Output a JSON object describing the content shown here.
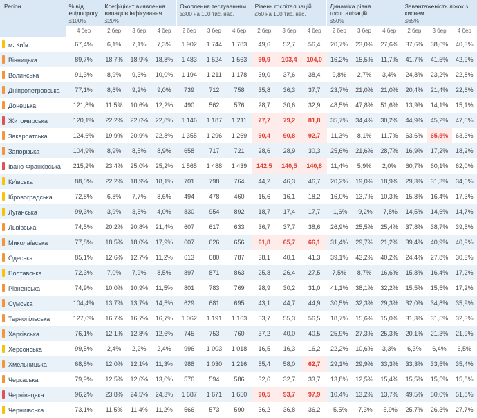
{
  "chart_data": {
    "type": "table",
    "column_groups": [
      {
        "title": "Регіон",
        "threshold": "",
        "dates": []
      },
      {
        "title": "% від епідпорогу",
        "threshold": "≤100%",
        "dates": [
          "4 бер"
        ]
      },
      {
        "title": "Коефіцієнт виявлення випадків інфікування",
        "threshold": "≤20%",
        "dates": [
          "2 бер",
          "3 бер",
          "4 бер"
        ]
      },
      {
        "title": "Охоплення тестуванням",
        "threshold": "≥300 на 100 тис. нас.",
        "dates": [
          "2 бер",
          "3 бер",
          "4 бер"
        ]
      },
      {
        "title": "Рівень госпіталізацій",
        "threshold": "≤60 на 100 тис. нас.",
        "dates": [
          "2 бер",
          "3 бер",
          "4 бер"
        ]
      },
      {
        "title": "Динаміка рівня госпіталізацій",
        "threshold": "≤50%",
        "dates": [
          "2 бер",
          "3 бер",
          "4 бер"
        ]
      },
      {
        "title": "Завантаженість ліжок з киснем",
        "threshold": "≤65%",
        "dates": [
          "2 бер",
          "3 бер",
          "4 бер"
        ]
      }
    ],
    "colors": {
      "header_bg": "#d9e8f4",
      "stripe_bg": "#e9f1f9",
      "alert_text": "#e03c31",
      "alert_bg": "#fdecea"
    },
    "indicator_colors": {
      "yellow": "#f6c20e",
      "orange": "#f5953b",
      "red": "#e05252"
    },
    "rows": [
      {
        "region": "м. Київ",
        "indicator": "yellow",
        "values": [
          [
            "67,4%"
          ],
          [
            "6,1%",
            "7,1%",
            "7,3%"
          ],
          [
            "1 902",
            "1 744",
            "1 783"
          ],
          [
            "49,6",
            "52,7",
            "56,4"
          ],
          [
            "20,7%",
            "23,0%",
            "27,6%"
          ],
          [
            "37,6%",
            "38,6%",
            "40,3%"
          ]
        ],
        "red": []
      },
      {
        "region": "Вінницька",
        "indicator": "orange",
        "values": [
          [
            "89,7%"
          ],
          [
            "18,7%",
            "18,9%",
            "18,8%"
          ],
          [
            "1 483",
            "1 524",
            "1 563"
          ],
          [
            "99,9",
            "103,4",
            "104,0"
          ],
          [
            "16,2%",
            "15,5%",
            "11,7%"
          ],
          [
            "41,7%",
            "41,5%",
            "42,9%"
          ]
        ],
        "red": [
          [
            3,
            0
          ],
          [
            3,
            1
          ],
          [
            3,
            2
          ]
        ]
      },
      {
        "region": "Волинська",
        "indicator": "orange",
        "values": [
          [
            "91,3%"
          ],
          [
            "8,9%",
            "9,3%",
            "10,0%"
          ],
          [
            "1 194",
            "1 211",
            "1 178"
          ],
          [
            "39,0",
            "37,6",
            "38,4"
          ],
          [
            "9,8%",
            "2,7%",
            "3,4%"
          ],
          [
            "24,8%",
            "23,2%",
            "22,8%"
          ]
        ],
        "red": []
      },
      {
        "region": "Дніпропетровська",
        "indicator": "orange",
        "values": [
          [
            "77,1%"
          ],
          [
            "8,6%",
            "9,2%",
            "9,0%"
          ],
          [
            "739",
            "712",
            "758"
          ],
          [
            "35,8",
            "36,3",
            "37,7"
          ],
          [
            "23,7%",
            "21,0%",
            "21,0%"
          ],
          [
            "20,4%",
            "21,4%",
            "22,6%"
          ]
        ],
        "red": []
      },
      {
        "region": "Донецька",
        "indicator": "orange",
        "values": [
          [
            "121,8%"
          ],
          [
            "11,5%",
            "10,6%",
            "12,2%"
          ],
          [
            "490",
            "562",
            "576"
          ],
          [
            "28,7",
            "30,6",
            "32,9"
          ],
          [
            "48,5%",
            "47,8%",
            "51,6%"
          ],
          [
            "13,9%",
            "14,1%",
            "15,1%"
          ]
        ],
        "red": []
      },
      {
        "region": "Житомирська",
        "indicator": "red",
        "values": [
          [
            "120,1%"
          ],
          [
            "22,2%",
            "22,6%",
            "22,8%"
          ],
          [
            "1 146",
            "1 187",
            "1 211"
          ],
          [
            "77,7",
            "79,2",
            "81,8"
          ],
          [
            "35,7%",
            "34,4%",
            "30,2%"
          ],
          [
            "44,9%",
            "45,2%",
            "47,0%"
          ]
        ],
        "red": [
          [
            3,
            0
          ],
          [
            3,
            1
          ],
          [
            3,
            2
          ]
        ]
      },
      {
        "region": "Закарпатська",
        "indicator": "orange",
        "values": [
          [
            "124,6%"
          ],
          [
            "19,9%",
            "20,9%",
            "22,8%"
          ],
          [
            "1 355",
            "1 296",
            "1 269"
          ],
          [
            "90,4",
            "90,8",
            "92,7"
          ],
          [
            "11,3%",
            "8,1%",
            "11,7%"
          ],
          [
            "63,6%",
            "65,5%",
            "63,3%"
          ]
        ],
        "red": [
          [
            3,
            0
          ],
          [
            3,
            1
          ],
          [
            3,
            2
          ],
          [
            5,
            1
          ]
        ]
      },
      {
        "region": "Запорізька",
        "indicator": "orange",
        "values": [
          [
            "104,9%"
          ],
          [
            "8,9%",
            "8,5%",
            "8,9%"
          ],
          [
            "658",
            "717",
            "721"
          ],
          [
            "28,6",
            "28,9",
            "30,3"
          ],
          [
            "25,6%",
            "21,6%",
            "28,7%"
          ],
          [
            "16,9%",
            "17,2%",
            "18,2%"
          ]
        ],
        "red": []
      },
      {
        "region": "Івано-Франківська",
        "indicator": "red",
        "values": [
          [
            "215,2%"
          ],
          [
            "23,4%",
            "25,0%",
            "25,2%"
          ],
          [
            "1 565",
            "1 488",
            "1 439"
          ],
          [
            "142,5",
            "140,5",
            "140,8"
          ],
          [
            "11,4%",
            "5,9%",
            "2,0%"
          ],
          [
            "60,7%",
            "60,1%",
            "62,0%"
          ]
        ],
        "red": [
          [
            3,
            0
          ],
          [
            3,
            1
          ],
          [
            3,
            2
          ]
        ]
      },
      {
        "region": "Київська",
        "indicator": "yellow",
        "values": [
          [
            "88,0%"
          ],
          [
            "22,2%",
            "18,9%",
            "18,1%"
          ],
          [
            "701",
            "798",
            "764"
          ],
          [
            "44,2",
            "46,3",
            "46,7"
          ],
          [
            "20,2%",
            "19,0%",
            "18,9%"
          ],
          [
            "29,3%",
            "31,3%",
            "34,6%"
          ]
        ],
        "red": []
      },
      {
        "region": "Кіровоградська",
        "indicator": "yellow",
        "values": [
          [
            "72,8%"
          ],
          [
            "6,8%",
            "7,7%",
            "8,6%"
          ],
          [
            "494",
            "478",
            "460"
          ],
          [
            "15,6",
            "16,1",
            "18,2"
          ],
          [
            "16,0%",
            "13,7%",
            "10,3%"
          ],
          [
            "15,8%",
            "16,4%",
            "17,3%"
          ]
        ],
        "red": []
      },
      {
        "region": "Луганська",
        "indicator": "yellow",
        "values": [
          [
            "99,3%"
          ],
          [
            "3,9%",
            "3,5%",
            "4,0%"
          ],
          [
            "830",
            "954",
            "892"
          ],
          [
            "18,7",
            "17,4",
            "17,7"
          ],
          [
            "-1,6%",
            "-9,2%",
            "-7,8%"
          ],
          [
            "14,5%",
            "14,6%",
            "14,7%"
          ]
        ],
        "red": []
      },
      {
        "region": "Львівська",
        "indicator": "orange",
        "values": [
          [
            "74,5%"
          ],
          [
            "20,2%",
            "20,8%",
            "21,4%"
          ],
          [
            "607",
            "617",
            "633"
          ],
          [
            "36,7",
            "37,7",
            "38,6"
          ],
          [
            "26,9%",
            "25,5%",
            "25,4%"
          ],
          [
            "37,8%",
            "38,7%",
            "39,5%"
          ]
        ],
        "red": []
      },
      {
        "region": "Миколаївська",
        "indicator": "orange",
        "values": [
          [
            "77,8%"
          ],
          [
            "18,5%",
            "18,0%",
            "17,9%"
          ],
          [
            "607",
            "626",
            "656"
          ],
          [
            "61,8",
            "65,7",
            "66,1"
          ],
          [
            "31,4%",
            "29,7%",
            "21,2%"
          ],
          [
            "39,4%",
            "40,9%",
            "40,9%"
          ]
        ],
        "red": [
          [
            3,
            0
          ],
          [
            3,
            1
          ],
          [
            3,
            2
          ]
        ]
      },
      {
        "region": "Одеська",
        "indicator": "orange",
        "values": [
          [
            "85,1%"
          ],
          [
            "12,6%",
            "12,7%",
            "11,2%"
          ],
          [
            "613",
            "680",
            "787"
          ],
          [
            "38,1",
            "40,1",
            "41,3"
          ],
          [
            "39,1%",
            "43,2%",
            "40,2%"
          ],
          [
            "24,4%",
            "27,8%",
            "30,3%"
          ]
        ],
        "red": []
      },
      {
        "region": "Полтавська",
        "indicator": "yellow",
        "values": [
          [
            "72,3%"
          ],
          [
            "7,0%",
            "7,9%",
            "8,5%"
          ],
          [
            "897",
            "871",
            "863"
          ],
          [
            "25,8",
            "26,4",
            "27,5"
          ],
          [
            "7,5%",
            "8,7%",
            "16,6%"
          ],
          [
            "15,8%",
            "16,4%",
            "17,2%"
          ]
        ],
        "red": []
      },
      {
        "region": "Рівненська",
        "indicator": "orange",
        "values": [
          [
            "74,9%"
          ],
          [
            "10,0%",
            "10,9%",
            "11,5%"
          ],
          [
            "801",
            "783",
            "769"
          ],
          [
            "28,9",
            "30,2",
            "31,0"
          ],
          [
            "41,1%",
            "38,1%",
            "32,2%"
          ],
          [
            "15,5%",
            "15,5%",
            "17,2%"
          ]
        ],
        "red": []
      },
      {
        "region": "Сумська",
        "indicator": "orange",
        "values": [
          [
            "104,4%"
          ],
          [
            "13,7%",
            "13,7%",
            "14,5%"
          ],
          [
            "629",
            "681",
            "695"
          ],
          [
            "43,1",
            "44,7",
            "44,9"
          ],
          [
            "30,5%",
            "32,3%",
            "29,3%"
          ],
          [
            "32,0%",
            "34,8%",
            "35,9%"
          ]
        ],
        "red": []
      },
      {
        "region": "Тернопільська",
        "indicator": "orange",
        "values": [
          [
            "127,0%"
          ],
          [
            "16,7%",
            "16,7%",
            "16,7%"
          ],
          [
            "1 062",
            "1 191",
            "1 163"
          ],
          [
            "53,7",
            "55,3",
            "56,5"
          ],
          [
            "18,7%",
            "15,6%",
            "15,0%"
          ],
          [
            "31,3%",
            "31,5%",
            "32,3%"
          ]
        ],
        "red": []
      },
      {
        "region": "Харківська",
        "indicator": "orange",
        "values": [
          [
            "76,1%"
          ],
          [
            "12,1%",
            "12,8%",
            "12,6%"
          ],
          [
            "745",
            "753",
            "760"
          ],
          [
            "37,2",
            "40,0",
            "40,5"
          ],
          [
            "25,9%",
            "27,3%",
            "25,3%"
          ],
          [
            "20,1%",
            "21,3%",
            "21,9%"
          ]
        ],
        "red": []
      },
      {
        "region": "Херсонська",
        "indicator": "yellow",
        "values": [
          [
            "99,5%"
          ],
          [
            "2,4%",
            "2,2%",
            "2,4%"
          ],
          [
            "996",
            "1 003",
            "1 018"
          ],
          [
            "16,5",
            "16,3",
            "16,2"
          ],
          [
            "22,2%",
            "10,6%",
            "3,3%"
          ],
          [
            "6,3%",
            "6,4%",
            "6,5%"
          ]
        ],
        "red": []
      },
      {
        "region": "Хмельницька",
        "indicator": "orange",
        "values": [
          [
            "68,8%"
          ],
          [
            "12,0%",
            "12,1%",
            "11,3%"
          ],
          [
            "988",
            "1 030",
            "1 216"
          ],
          [
            "55,4",
            "58,0",
            "62,7"
          ],
          [
            "29,1%",
            "29,9%",
            "33,3%"
          ],
          [
            "33,3%",
            "33,5%",
            "35,4%"
          ]
        ],
        "red": [
          [
            3,
            2
          ]
        ]
      },
      {
        "region": "Черкаська",
        "indicator": "orange",
        "values": [
          [
            "79,9%"
          ],
          [
            "12,5%",
            "12,6%",
            "13,0%"
          ],
          [
            "576",
            "594",
            "586"
          ],
          [
            "32,6",
            "32,7",
            "33,7"
          ],
          [
            "13,8%",
            "12,5%",
            "15,4%"
          ],
          [
            "15,5%",
            "15,5%",
            "15,8%"
          ]
        ],
        "red": []
      },
      {
        "region": "Чернівецька",
        "indicator": "red",
        "values": [
          [
            "96,2%"
          ],
          [
            "23,8%",
            "24,5%",
            "24,3%"
          ],
          [
            "1 687",
            "1 671",
            "1 650"
          ],
          [
            "90,5",
            "93,7",
            "97,9"
          ],
          [
            "10,4%",
            "13,2%",
            "13,7%"
          ],
          [
            "49,5%",
            "50,0%",
            "51,8%"
          ]
        ],
        "red": [
          [
            3,
            0
          ],
          [
            3,
            1
          ],
          [
            3,
            2
          ]
        ]
      },
      {
        "region": "Чернігівська",
        "indicator": "yellow",
        "values": [
          [
            "73,1%"
          ],
          [
            "11,5%",
            "11,4%",
            "11,2%"
          ],
          [
            "566",
            "573",
            "590"
          ],
          [
            "36,2",
            "36,8",
            "36,2"
          ],
          [
            "-5,5%",
            "-7,3%",
            "-5,9%"
          ],
          [
            "25,7%",
            "26,3%",
            "27,7%"
          ]
        ],
        "red": []
      }
    ]
  }
}
